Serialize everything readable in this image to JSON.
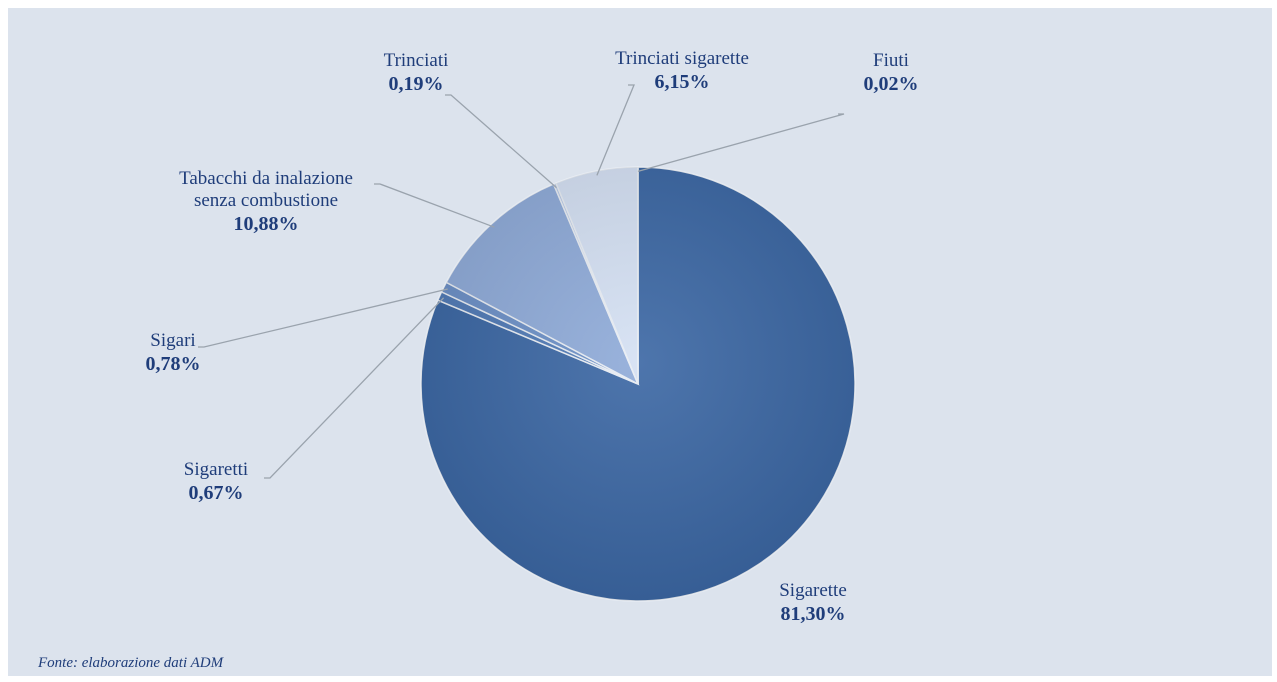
{
  "chart_data": {
    "type": "pie",
    "start_angle_deg": 0,
    "direction": "clockwise",
    "slices": [
      {
        "name": "Sigarette",
        "value": 81.3,
        "label": "81,30%",
        "color": "#3a66a3"
      },
      {
        "name": "Sigaretti",
        "value": 0.67,
        "label": "0,67%",
        "color": "#4f79b5"
      },
      {
        "name": "Sigari",
        "value": 0.78,
        "label": "0,78%",
        "color": "#6b8fc6"
      },
      {
        "name": "Tabacchi da inalazione senza combustione",
        "value": 10.88,
        "label": "10,88%",
        "color": "#8eaad8",
        "name_lines": [
          "Tabacchi da inalazione",
          "senza combustione"
        ]
      },
      {
        "name": "Trinciati",
        "value": 0.19,
        "label": "0,19%",
        "color": "#b3c6e6"
      },
      {
        "name": "Trinciati sigarette",
        "value": 6.15,
        "label": "6,15%",
        "color": "#d4e0f3"
      },
      {
        "name": "Fiuti",
        "value": 0.02,
        "label": "0,02%",
        "color": "#eaf0fa"
      }
    ]
  },
  "source_note": "Fonte: elaborazione dati ADM",
  "colors": {
    "background": "#dce3ed",
    "label": "#1f3d7a",
    "leader": "#9aa3ad"
  }
}
